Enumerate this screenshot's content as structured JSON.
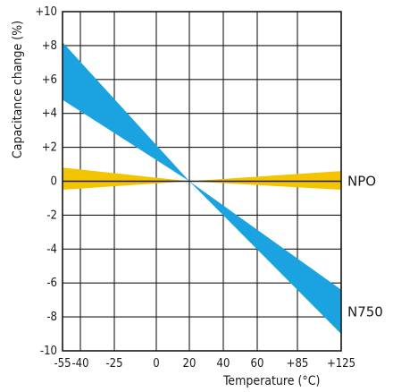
{
  "chart_data": {
    "type": "area",
    "xlabel": "Temperature (°C)",
    "ylabel": "Capacitance change (%)",
    "x_ticks": [
      -55,
      -40,
      -25,
      0,
      20,
      40,
      60,
      85,
      125
    ],
    "x_tick_labels": [
      "-55",
      "-40",
      "-25",
      "0",
      "20",
      "40",
      "60",
      "+85",
      "+125"
    ],
    "y_ticks": [
      10,
      8,
      6,
      4,
      2,
      0,
      -2,
      -4,
      -6,
      -8,
      -10
    ],
    "y_tick_labels": [
      "+10",
      "+8",
      "+6",
      "+4",
      "+2",
      "0",
      "-2",
      "-4",
      "-6",
      "-8",
      "-10"
    ],
    "ylim": [
      -10,
      10
    ],
    "grid": true,
    "series": [
      {
        "name": "NPO",
        "color": "#f5c400",
        "x": [
          -55,
          20,
          125
        ],
        "upper": [
          0.8,
          0,
          0.6
        ],
        "lower": [
          -0.5,
          0,
          -0.5
        ]
      },
      {
        "name": "N750",
        "color": "#1aa3e0",
        "x": [
          -55,
          20,
          125
        ],
        "upper": [
          8.2,
          0,
          -6.4
        ],
        "lower": [
          4.8,
          0,
          -9.0
        ]
      }
    ]
  }
}
